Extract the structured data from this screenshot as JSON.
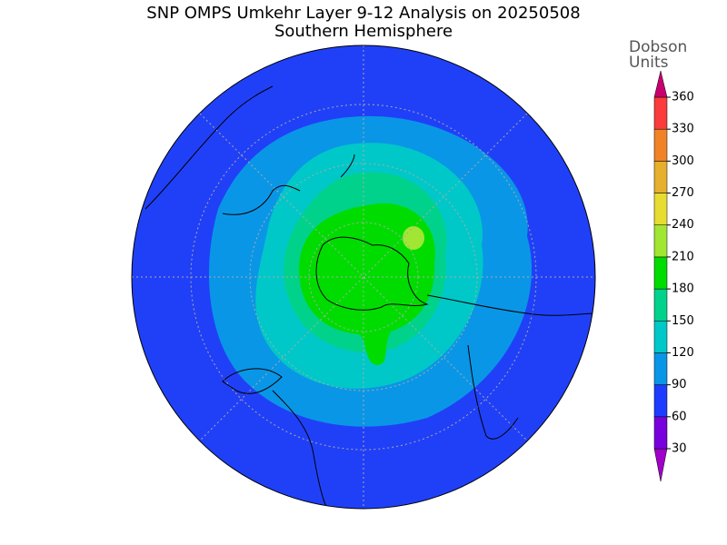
{
  "header": {
    "title": "SNP OMPS Umkehr Layer 9-12 Analysis on 20250508",
    "subtitle": "Southern Hemisphere"
  },
  "colorbar": {
    "label": [
      "Dobson",
      "Units"
    ],
    "ticks": [
      30,
      60,
      90,
      120,
      150,
      180,
      210,
      240,
      270,
      300,
      330,
      360
    ],
    "colors": [
      "#a000c8",
      "#7800dc",
      "#1e3cff",
      "#0a96e6",
      "#00c8c8",
      "#00d28c",
      "#00dc00",
      "#a0e632",
      "#e6dc32",
      "#e6af2d",
      "#f08228",
      "#fa3c3c",
      "#c8006e"
    ]
  }
}
